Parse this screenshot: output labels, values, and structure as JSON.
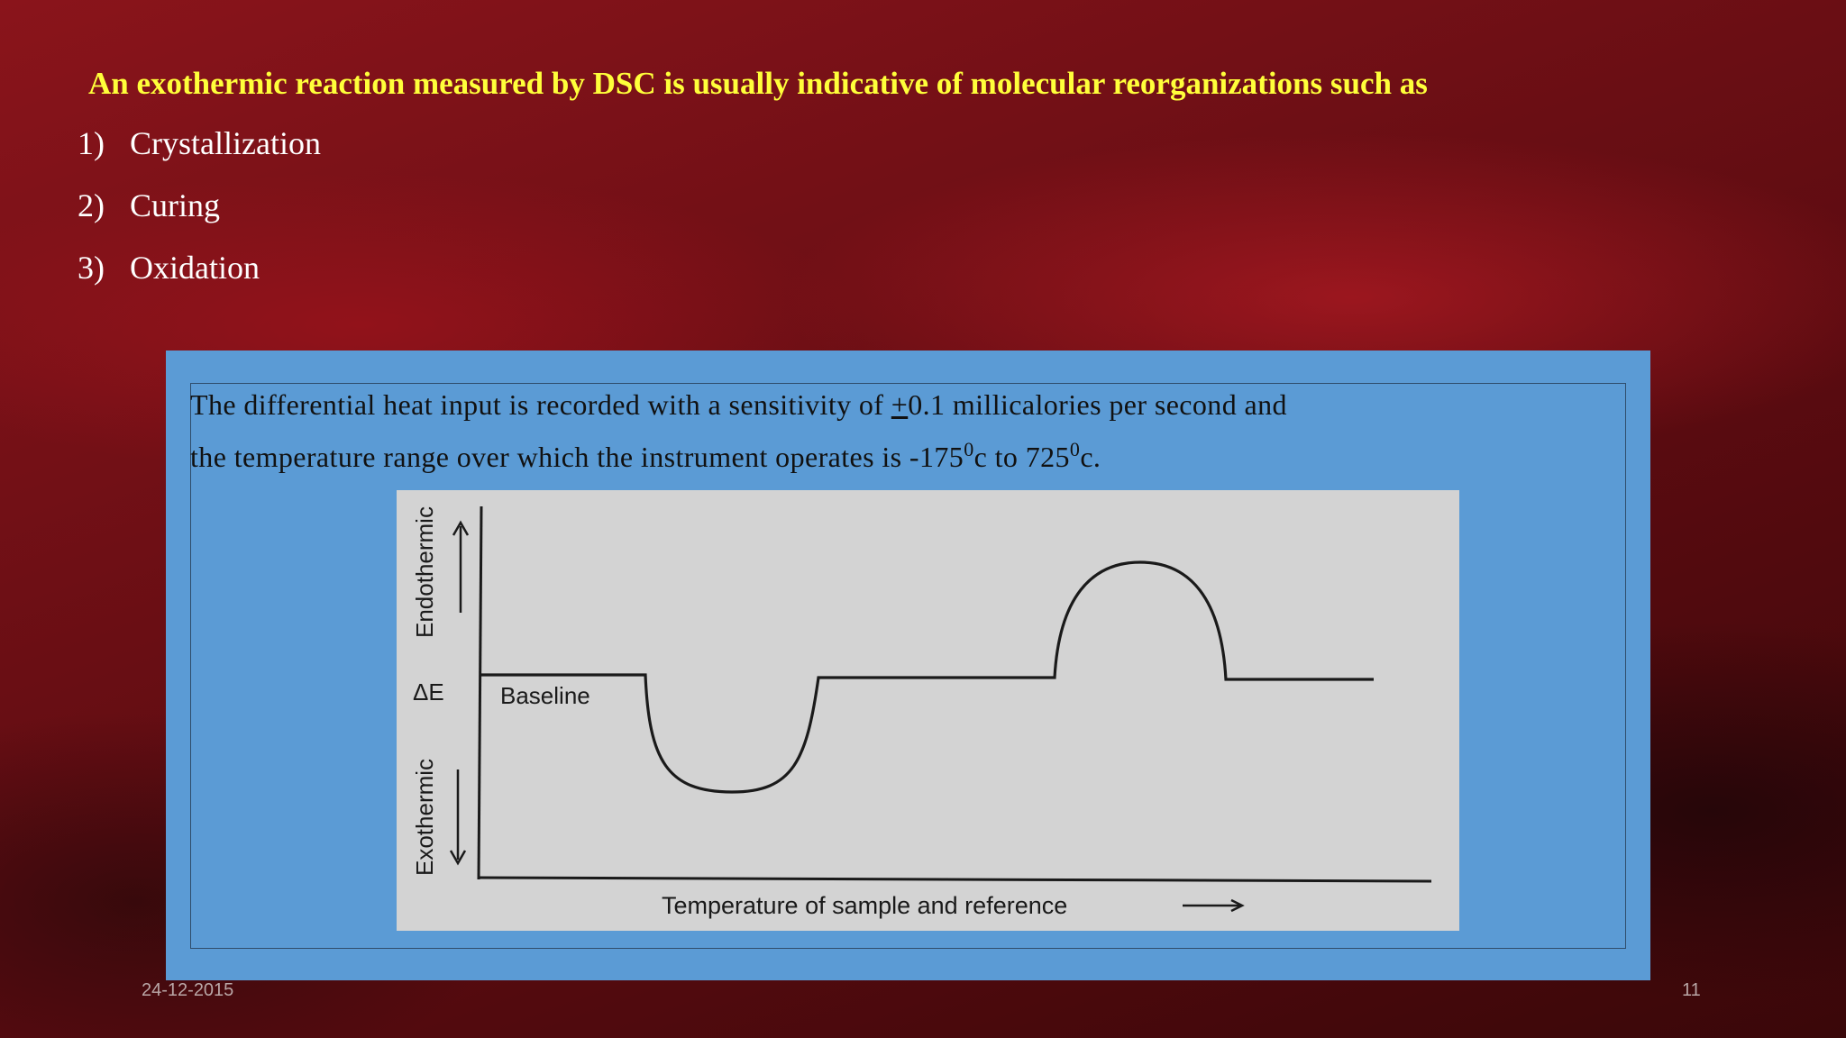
{
  "heading": "An exothermic reaction measured by DSC is usually indicative of molecular reorganizations such as",
  "list": [
    {
      "num": "1)",
      "text": "Crystallization"
    },
    {
      "num": "2)",
      "text": "Curing"
    },
    {
      "num": "3)",
      "text": "Oxidation"
    }
  ],
  "panel": {
    "line1_pre": "The differential heat input is recorded with a sensitivity of ",
    "line1_pm": "+",
    "line1_post": "0.1 millicalories per second and",
    "line2_pre": "the temperature range over which the instrument operates is -175",
    "sup1": "0",
    "line2_mid": "c to 725",
    "sup2": "0",
    "line2_post": "c."
  },
  "figure": {
    "label_endothermic": "Endothermic",
    "label_exothermic": "Exothermic",
    "label_delta": "ΔE",
    "label_baseline": "Baseline",
    "label_xaxis": "Temperature of sample and reference"
  },
  "footer": {
    "date": "24-12-2015",
    "page": "11"
  }
}
